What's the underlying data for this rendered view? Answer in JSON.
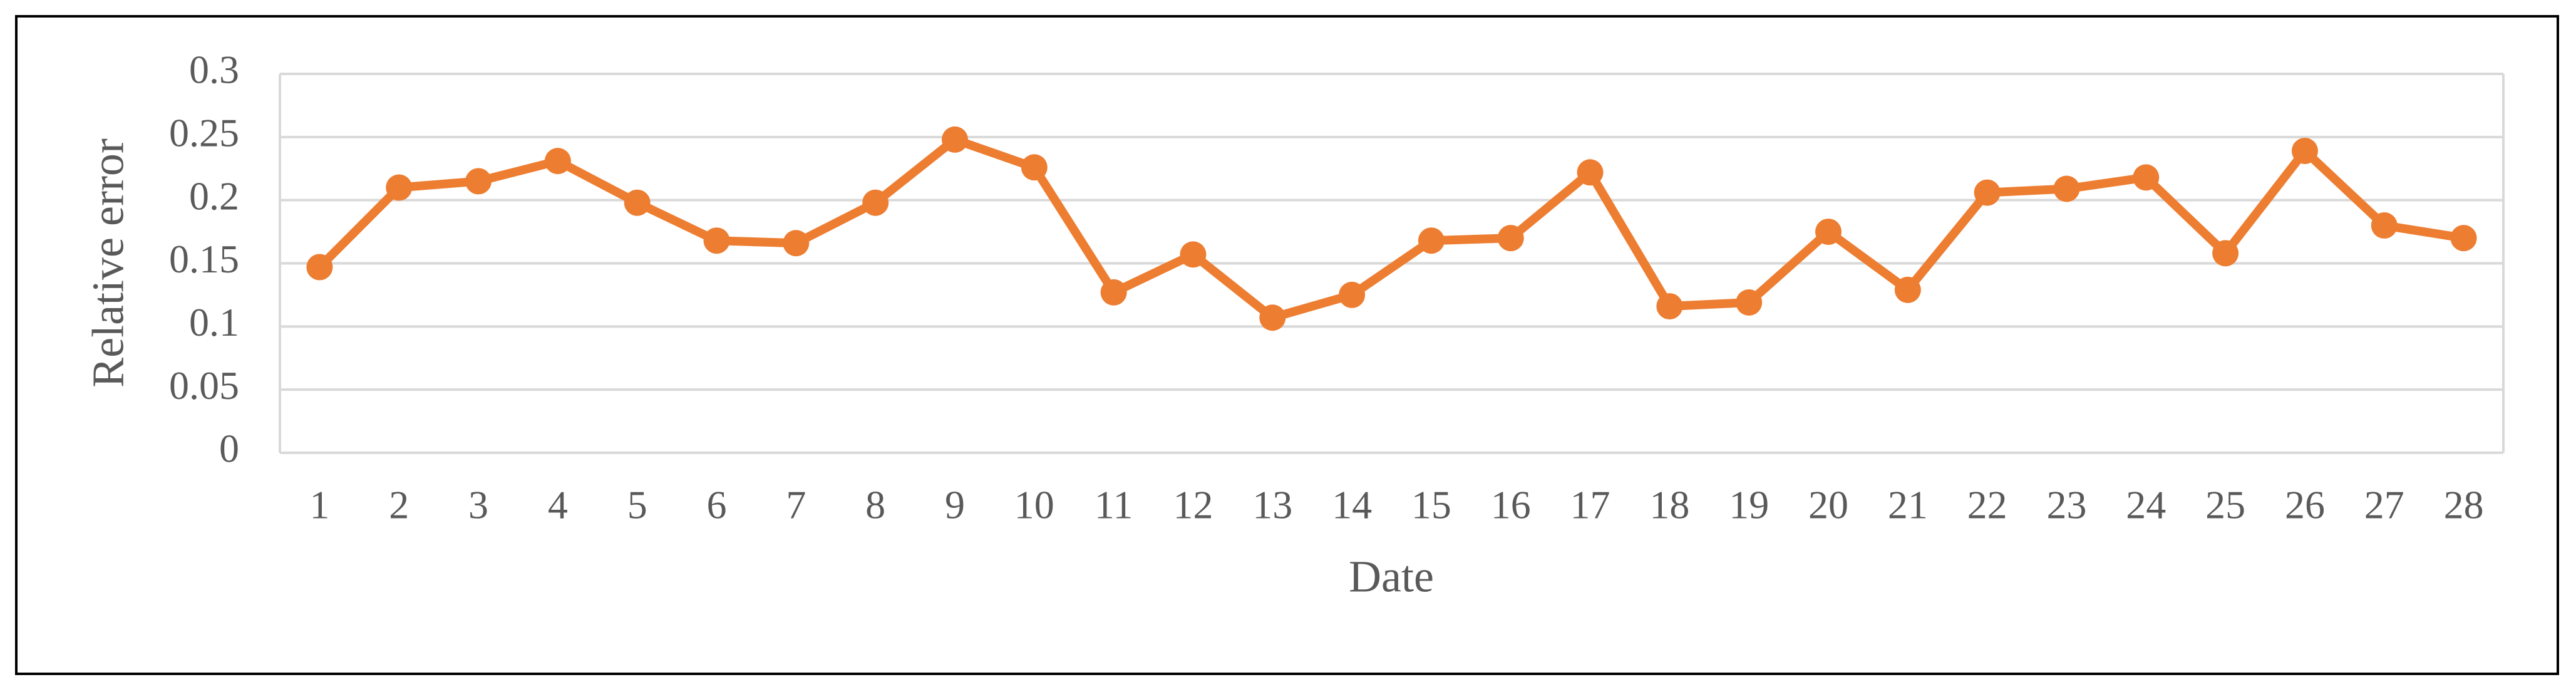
{
  "chart_data": {
    "type": "line",
    "x_label": "Date",
    "y_label": "Relative error",
    "categories": [
      "1",
      "2",
      "3",
      "4",
      "5",
      "6",
      "7",
      "8",
      "9",
      "10",
      "11",
      "12",
      "13",
      "14",
      "15",
      "16",
      "17",
      "18",
      "19",
      "20",
      "21",
      "22",
      "23",
      "24",
      "25",
      "26",
      "27",
      "28"
    ],
    "series": [
      {
        "name": "Relative error",
        "color": "#ed7d31",
        "values": [
          0.147,
          0.21,
          0.215,
          0.231,
          0.198,
          0.168,
          0.166,
          0.198,
          0.248,
          0.226,
          0.127,
          0.157,
          0.107,
          0.125,
          0.168,
          0.17,
          0.222,
          0.116,
          0.119,
          0.175,
          0.129,
          0.206,
          0.209,
          0.218,
          0.158,
          0.239,
          0.18,
          0.17
        ]
      }
    ],
    "ylim": [
      0,
      0.3
    ],
    "yticks": [
      0,
      0.05,
      0.1,
      0.15,
      0.2,
      0.25,
      0.3
    ],
    "grid": true
  }
}
